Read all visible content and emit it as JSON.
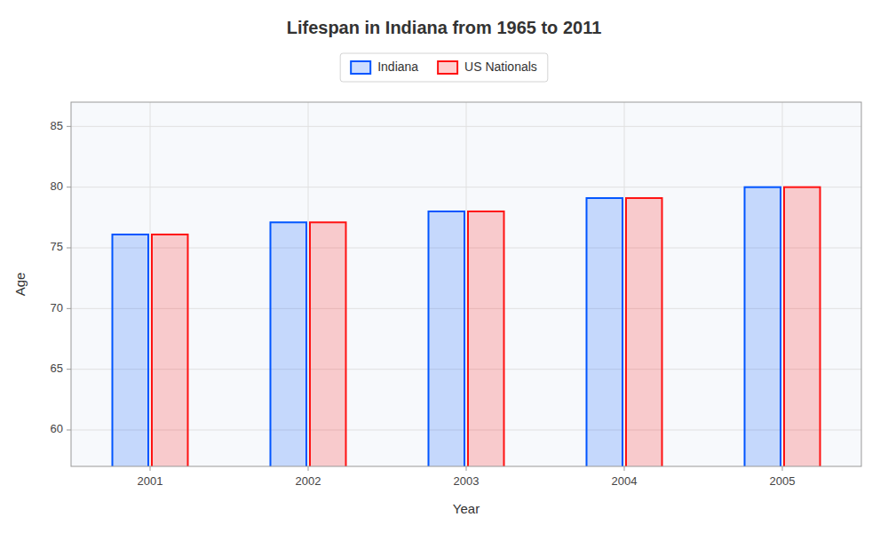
{
  "chart_data": {
    "type": "bar",
    "title": "Lifespan in Indiana from 1965 to 2011",
    "xlabel": "Year",
    "ylabel": "Age",
    "categories": [
      "2001",
      "2002",
      "2003",
      "2004",
      "2005"
    ],
    "series": [
      {
        "name": "Indiana",
        "color": "#0055ff",
        "values": [
          76.1,
          77.1,
          78.0,
          79.1,
          80.0
        ]
      },
      {
        "name": "US Nationals",
        "color": "#ff1111",
        "values": [
          76.1,
          77.1,
          78.0,
          79.1,
          80.0
        ]
      }
    ],
    "ylim": [
      57,
      87
    ],
    "yticks": [
      60,
      65,
      70,
      75,
      80,
      85
    ],
    "grid": true,
    "legend": "top"
  }
}
